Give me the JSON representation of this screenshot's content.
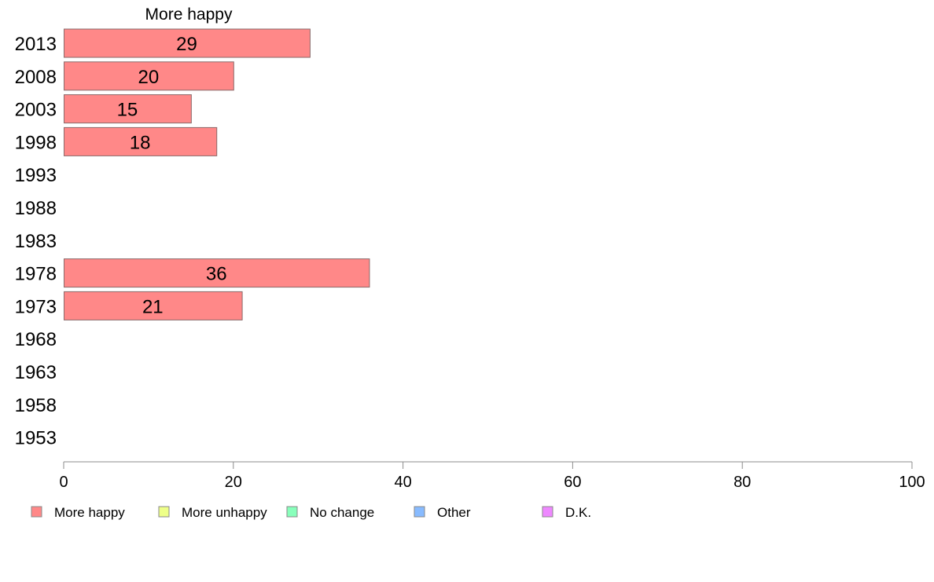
{
  "chart_data": {
    "type": "bar",
    "orientation": "horizontal",
    "title": "More happy",
    "categories": [
      "2013",
      "2008",
      "2003",
      "1998",
      "1993",
      "1988",
      "1983",
      "1978",
      "1973",
      "1968",
      "1963",
      "1958",
      "1953"
    ],
    "series": [
      {
        "name": "More happy",
        "color": "#ff8888",
        "values": [
          29,
          20,
          15,
          18,
          null,
          null,
          null,
          36,
          21,
          null,
          null,
          null,
          null
        ]
      }
    ],
    "data_labels": [
      "29",
      "20",
      "15",
      "18",
      "",
      "",
      "",
      "36",
      "21",
      "",
      "",
      "",
      ""
    ],
    "xlim": [
      0,
      100
    ],
    "xticks": [
      0,
      20,
      40,
      60,
      80,
      100
    ],
    "xtick_labels": [
      "0",
      "20",
      "40",
      "60",
      "80",
      "100"
    ],
    "grid": false,
    "legend_position": "bottom",
    "legend": [
      {
        "label": "More happy",
        "color": "#ff8888"
      },
      {
        "label": "More unhappy",
        "color": "#eeff88"
      },
      {
        "label": "No change",
        "color": "#88ffbb"
      },
      {
        "label": "Other",
        "color": "#88bbff"
      },
      {
        "label": "D.K.",
        "color": "#ee88ff"
      }
    ]
  }
}
